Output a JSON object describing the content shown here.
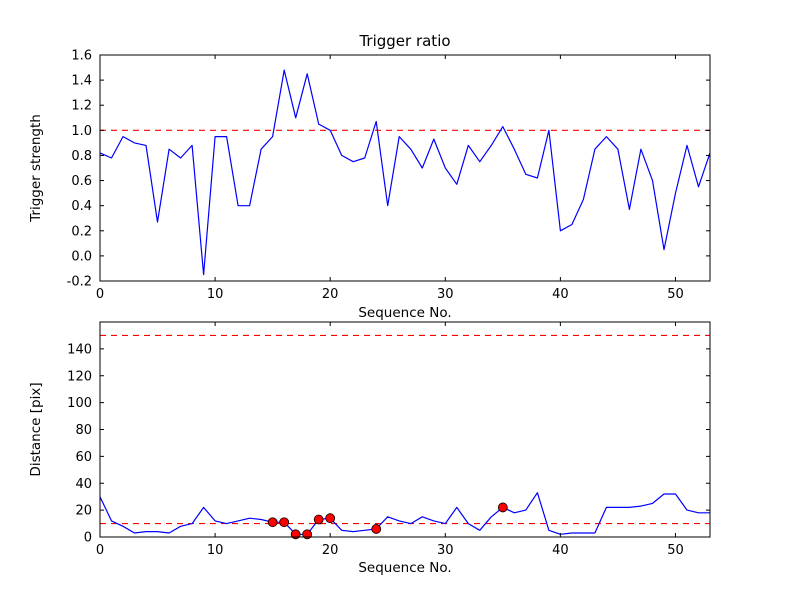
{
  "figure": {
    "background": "#ffffff",
    "line_color": "#0000ff",
    "threshold_color": "#ff0000",
    "marker_face_color": "#ff0000",
    "marker_edge_color": "#000000"
  },
  "chart_data": [
    {
      "type": "line",
      "title": "Trigger ratio",
      "xlabel": "Sequence No.",
      "ylabel": "Trigger strength",
      "xlim": [
        0,
        53
      ],
      "ylim": [
        -0.2,
        1.6
      ],
      "grid": false,
      "legend": "none",
      "xticks": {
        "values": [
          0,
          10,
          20,
          30,
          40,
          50
        ],
        "labels": [
          "0",
          "10",
          "20",
          "30",
          "40",
          "50"
        ]
      },
      "yticks": {
        "values": [
          -0.2,
          0.0,
          0.2,
          0.4,
          0.6,
          0.8,
          1.0,
          1.2,
          1.4,
          1.6
        ],
        "labels": [
          "-0.2",
          "0.0",
          "0.2",
          "0.4",
          "0.6",
          "0.8",
          "1.0",
          "1.2",
          "1.4",
          "1.6"
        ]
      },
      "hlines": [
        {
          "y": 1.0,
          "color": "#ff0000",
          "dash": "6,5",
          "name": "trigger-threshold-line"
        }
      ],
      "series": [
        {
          "name": "trigger-strength",
          "color": "#0000ff",
          "x": [
            0,
            1,
            2,
            3,
            4,
            5,
            6,
            7,
            8,
            9,
            10,
            11,
            12,
            13,
            14,
            15,
            16,
            17,
            18,
            19,
            20,
            21,
            22,
            23,
            24,
            25,
            26,
            27,
            28,
            29,
            30,
            31,
            32,
            33,
            34,
            35,
            36,
            37,
            38,
            39,
            40,
            41,
            42,
            43,
            44,
            45,
            46,
            47,
            48,
            49,
            50,
            51,
            52,
            53
          ],
          "y": [
            0.82,
            0.78,
            0.95,
            0.9,
            0.88,
            0.27,
            0.85,
            0.78,
            0.88,
            -0.15,
            0.95,
            0.95,
            0.4,
            0.4,
            0.85,
            0.95,
            1.48,
            1.1,
            1.45,
            1.05,
            1.0,
            0.8,
            0.75,
            0.78,
            1.07,
            0.4,
            0.95,
            0.85,
            0.7,
            0.93,
            0.7,
            0.57,
            0.88,
            0.75,
            0.88,
            1.03,
            0.85,
            0.65,
            0.62,
            1.0,
            0.2,
            0.25,
            0.45,
            0.85,
            0.95,
            0.85,
            0.37,
            0.85,
            0.6,
            0.05,
            0.5,
            0.88,
            0.55,
            0.82
          ]
        }
      ],
      "scatter": []
    },
    {
      "type": "line",
      "title": "",
      "xlabel": "Sequence No.",
      "ylabel": "Distance [pix]",
      "xlim": [
        0,
        53
      ],
      "ylim": [
        0,
        160
      ],
      "grid": false,
      "legend": "none",
      "xticks": {
        "values": [
          0,
          10,
          20,
          30,
          40,
          50
        ],
        "labels": [
          "0",
          "10",
          "20",
          "30",
          "40",
          "50"
        ]
      },
      "yticks": {
        "values": [
          0,
          20,
          40,
          60,
          80,
          100,
          120,
          140
        ],
        "labels": [
          "0",
          "20",
          "40",
          "60",
          "80",
          "100",
          "120",
          "140"
        ]
      },
      "hlines": [
        {
          "y": 150,
          "color": "#ff0000",
          "dash": "6,5",
          "name": "distance-upper-threshold-line"
        },
        {
          "y": 10,
          "color": "#ff0000",
          "dash": "6,5",
          "name": "distance-lower-threshold-line"
        }
      ],
      "series": [
        {
          "name": "distance",
          "color": "#0000ff",
          "x": [
            0,
            1,
            2,
            3,
            4,
            5,
            6,
            7,
            8,
            9,
            10,
            11,
            12,
            13,
            14,
            15,
            16,
            17,
            18,
            19,
            20,
            21,
            22,
            23,
            24,
            25,
            26,
            27,
            28,
            29,
            30,
            31,
            32,
            33,
            34,
            35,
            36,
            37,
            38,
            39,
            40,
            41,
            42,
            43,
            44,
            45,
            46,
            47,
            48,
            49,
            50,
            51,
            52,
            53
          ],
          "y": [
            30,
            12,
            8,
            3,
            4,
            4,
            3,
            8,
            10,
            22,
            12,
            10,
            12,
            14,
            13,
            11,
            11,
            2,
            2,
            13,
            14,
            5,
            4,
            5,
            6,
            15,
            12,
            10,
            15,
            12,
            10,
            22,
            10,
            5,
            15,
            22,
            18,
            20,
            33,
            5,
            2,
            3,
            3,
            3,
            22,
            22,
            22,
            23,
            25,
            32,
            32,
            20,
            18,
            18
          ]
        }
      ],
      "scatter": [
        {
          "name": "trigger-points",
          "color": "#ff0000",
          "edge": "#000000",
          "points": [
            [
              15,
              11
            ],
            [
              16,
              11
            ],
            [
              17,
              2
            ],
            [
              18,
              2
            ],
            [
              19,
              13
            ],
            [
              20,
              14
            ],
            [
              24,
              6
            ],
            [
              35,
              22
            ]
          ]
        }
      ]
    }
  ]
}
